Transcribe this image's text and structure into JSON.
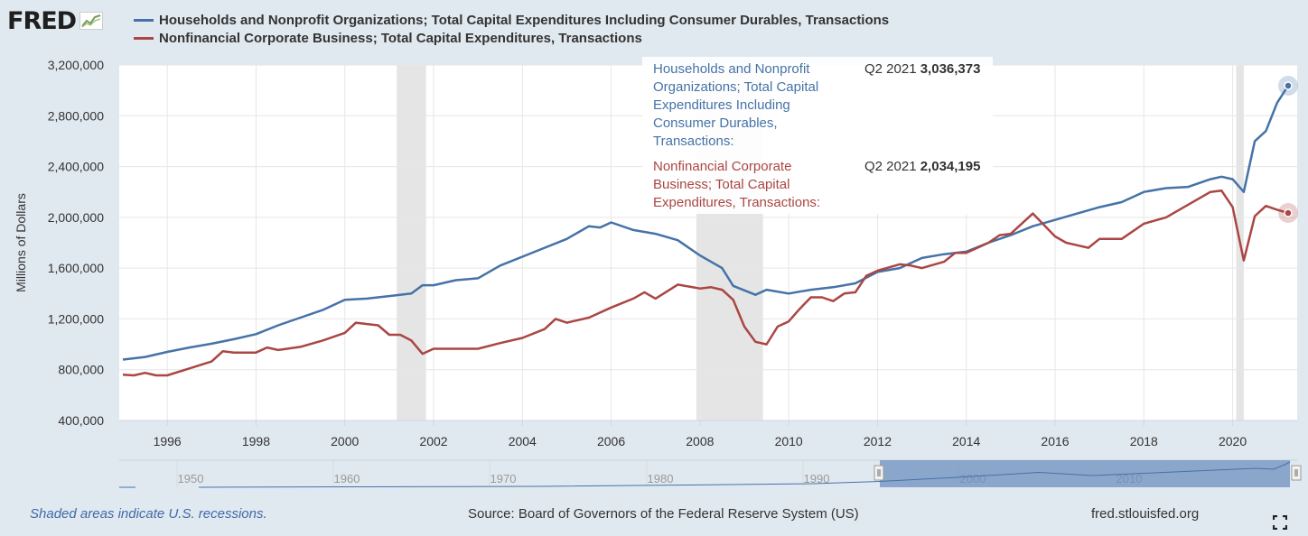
{
  "header": {
    "logo_text": "FRED",
    "logo_suffix": "®"
  },
  "legend": [
    {
      "label": "Households and Nonprofit Organizations; Total Capital Expenditures Including Consumer Durables, Transactions",
      "color": "#4572a7"
    },
    {
      "label": "Nonfinancial Corporate Business; Total Capital Expenditures, Transactions",
      "color": "#aa4643"
    }
  ],
  "tooltip": {
    "series1": "Households and Nonprofit Organizations; Total Capital Expenditures Including Consumer Durables, Transactions:",
    "series1_period": "Q2 2021",
    "series1_value": "3,036,373",
    "series2": "Nonfinancial Corporate Business; Total Capital Expenditures, Transactions:",
    "series2_period": "Q2 2021",
    "series2_value": "2,034,195"
  },
  "footer": {
    "note": "Shaded areas indicate U.S. recessions.",
    "source": "Source: Board of Governors of the Federal Reserve System (US)",
    "url": "fred.stlouisfed.org"
  },
  "chart_data": {
    "type": "line",
    "ylabel": "Millions of Dollars",
    "ylim": [
      400000,
      3200000
    ],
    "xlim": [
      1995.0,
      2021.25
    ],
    "yticks": [
      "3,200,000",
      "2,800,000",
      "2,400,000",
      "2,000,000",
      "1,600,000",
      "1,200,000",
      "800,000",
      "400,000"
    ],
    "xticks": [
      "1996",
      "1998",
      "2000",
      "2002",
      "2004",
      "2006",
      "2008",
      "2010",
      "2012",
      "2014",
      "2016",
      "2018",
      "2020"
    ],
    "grid": true,
    "recessions": [
      [
        2001.17,
        2001.83
      ],
      [
        2007.92,
        2009.42
      ],
      [
        2020.08,
        2020.25
      ]
    ],
    "series": [
      {
        "name": "Households and Nonprofit Organizations; Total Capital Expenditures Including Consumer Durables, Transactions",
        "color": "#4572a7",
        "points": [
          [
            1995.0,
            880000
          ],
          [
            1995.5,
            900000
          ],
          [
            1996.0,
            940000
          ],
          [
            1996.5,
            975000
          ],
          [
            1997.0,
            1005000
          ],
          [
            1997.5,
            1040000
          ],
          [
            1998.0,
            1080000
          ],
          [
            1998.5,
            1150000
          ],
          [
            1999.0,
            1210000
          ],
          [
            1999.5,
            1270000
          ],
          [
            2000.0,
            1350000
          ],
          [
            2000.5,
            1360000
          ],
          [
            2001.0,
            1380000
          ],
          [
            2001.5,
            1400000
          ],
          [
            2001.75,
            1465000
          ],
          [
            2002.0,
            1465000
          ],
          [
            2002.5,
            1505000
          ],
          [
            2003.0,
            1520000
          ],
          [
            2003.5,
            1620000
          ],
          [
            2004.0,
            1690000
          ],
          [
            2004.5,
            1760000
          ],
          [
            2005.0,
            1830000
          ],
          [
            2005.5,
            1930000
          ],
          [
            2005.75,
            1920000
          ],
          [
            2006.0,
            1960000
          ],
          [
            2006.5,
            1900000
          ],
          [
            2007.0,
            1870000
          ],
          [
            2007.5,
            1820000
          ],
          [
            2008.0,
            1700000
          ],
          [
            2008.5,
            1600000
          ],
          [
            2008.75,
            1460000
          ],
          [
            2009.25,
            1390000
          ],
          [
            2009.5,
            1430000
          ],
          [
            2010.0,
            1400000
          ],
          [
            2010.5,
            1430000
          ],
          [
            2011.0,
            1450000
          ],
          [
            2011.5,
            1480000
          ],
          [
            2012.0,
            1570000
          ],
          [
            2012.5,
            1600000
          ],
          [
            2013.0,
            1680000
          ],
          [
            2013.5,
            1710000
          ],
          [
            2014.0,
            1730000
          ],
          [
            2014.5,
            1800000
          ],
          [
            2015.0,
            1860000
          ],
          [
            2015.5,
            1930000
          ],
          [
            2016.0,
            1980000
          ],
          [
            2016.5,
            2030000
          ],
          [
            2017.0,
            2080000
          ],
          [
            2017.5,
            2120000
          ],
          [
            2018.0,
            2200000
          ],
          [
            2018.5,
            2230000
          ],
          [
            2019.0,
            2240000
          ],
          [
            2019.5,
            2300000
          ],
          [
            2019.75,
            2320000
          ],
          [
            2020.0,
            2300000
          ],
          [
            2020.25,
            2200000
          ],
          [
            2020.5,
            2600000
          ],
          [
            2020.75,
            2680000
          ],
          [
            2021.0,
            2900000
          ],
          [
            2021.25,
            3036373
          ]
        ]
      },
      {
        "name": "Nonfinancial Corporate Business; Total Capital Expenditures, Transactions",
        "color": "#aa4643",
        "points": [
          [
            1995.0,
            760000
          ],
          [
            1995.25,
            755000
          ],
          [
            1995.5,
            775000
          ],
          [
            1995.75,
            755000
          ],
          [
            1996.0,
            755000
          ],
          [
            1996.5,
            810000
          ],
          [
            1997.0,
            865000
          ],
          [
            1997.25,
            945000
          ],
          [
            1997.5,
            935000
          ],
          [
            1998.0,
            935000
          ],
          [
            1998.25,
            975000
          ],
          [
            1998.5,
            955000
          ],
          [
            1999.0,
            980000
          ],
          [
            1999.5,
            1030000
          ],
          [
            2000.0,
            1090000
          ],
          [
            2000.25,
            1170000
          ],
          [
            2000.5,
            1160000
          ],
          [
            2000.75,
            1150000
          ],
          [
            2001.0,
            1075000
          ],
          [
            2001.25,
            1075000
          ],
          [
            2001.5,
            1030000
          ],
          [
            2001.75,
            925000
          ],
          [
            2002.0,
            965000
          ],
          [
            2002.5,
            965000
          ],
          [
            2003.0,
            965000
          ],
          [
            2003.5,
            1010000
          ],
          [
            2004.0,
            1050000
          ],
          [
            2004.5,
            1120000
          ],
          [
            2004.75,
            1200000
          ],
          [
            2005.0,
            1170000
          ],
          [
            2005.5,
            1210000
          ],
          [
            2006.0,
            1290000
          ],
          [
            2006.5,
            1360000
          ],
          [
            2006.75,
            1410000
          ],
          [
            2007.0,
            1360000
          ],
          [
            2007.5,
            1470000
          ],
          [
            2008.0,
            1440000
          ],
          [
            2008.25,
            1450000
          ],
          [
            2008.5,
            1430000
          ],
          [
            2008.75,
            1350000
          ],
          [
            2009.0,
            1140000
          ],
          [
            2009.25,
            1020000
          ],
          [
            2009.5,
            1000000
          ],
          [
            2009.75,
            1140000
          ],
          [
            2010.0,
            1180000
          ],
          [
            2010.25,
            1280000
          ],
          [
            2010.5,
            1370000
          ],
          [
            2010.75,
            1370000
          ],
          [
            2011.0,
            1340000
          ],
          [
            2011.25,
            1400000
          ],
          [
            2011.5,
            1410000
          ],
          [
            2011.75,
            1540000
          ],
          [
            2012.0,
            1580000
          ],
          [
            2012.5,
            1630000
          ],
          [
            2012.75,
            1620000
          ],
          [
            2013.0,
            1600000
          ],
          [
            2013.5,
            1650000
          ],
          [
            2013.75,
            1720000
          ],
          [
            2014.0,
            1720000
          ],
          [
            2014.5,
            1800000
          ],
          [
            2014.75,
            1860000
          ],
          [
            2015.0,
            1870000
          ],
          [
            2015.5,
            2030000
          ],
          [
            2016.0,
            1850000
          ],
          [
            2016.25,
            1800000
          ],
          [
            2016.5,
            1780000
          ],
          [
            2016.75,
            1760000
          ],
          [
            2017.0,
            1830000
          ],
          [
            2017.5,
            1830000
          ],
          [
            2018.0,
            1950000
          ],
          [
            2018.5,
            2000000
          ],
          [
            2019.0,
            2100000
          ],
          [
            2019.5,
            2200000
          ],
          [
            2019.75,
            2210000
          ],
          [
            2020.0,
            2080000
          ],
          [
            2020.25,
            1660000
          ],
          [
            2020.5,
            2010000
          ],
          [
            2020.75,
            2090000
          ],
          [
            2021.0,
            2060000
          ],
          [
            2021.25,
            2034195
          ]
        ]
      }
    ],
    "navigator": {
      "xticks": [
        "1950",
        "1960",
        "1970",
        "1980",
        "1990",
        "2000",
        "2010"
      ]
    }
  }
}
